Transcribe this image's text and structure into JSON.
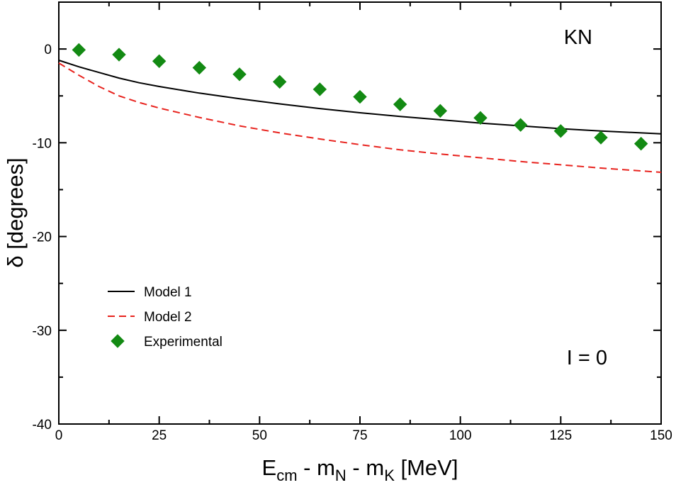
{
  "chart_data": {
    "type": "line",
    "title": "",
    "xlabel": {
      "main": "E",
      "sub1": "cm",
      "mid1": " - m",
      "sub2": "N",
      "mid2": " - m",
      "sub3": "K",
      "tail": " [MeV]"
    },
    "ylabel": "δ [degrees]",
    "xlim": [
      0,
      150
    ],
    "ylim": [
      -40,
      5
    ],
    "xticks": [
      0,
      25,
      50,
      75,
      100,
      125,
      150
    ],
    "yticks": [
      0,
      -10,
      -20,
      -30,
      -40
    ],
    "grid": false,
    "legend_position": "lower-left",
    "annotations": {
      "top_right": "KN",
      "bottom_right": "I = 0"
    },
    "series": [
      {
        "name": "Model 1",
        "style": "solid",
        "color": "#000000",
        "x": [
          0,
          5,
          10,
          15,
          20,
          25,
          35,
          45,
          55,
          65,
          75,
          85,
          95,
          105,
          115,
          125,
          135,
          145,
          150
        ],
        "y": [
          -1.2,
          -1.9,
          -2.5,
          -3.1,
          -3.6,
          -4.0,
          -4.7,
          -5.3,
          -5.85,
          -6.35,
          -6.8,
          -7.2,
          -7.55,
          -7.9,
          -8.2,
          -8.5,
          -8.75,
          -8.95,
          -9.05
        ]
      },
      {
        "name": "Model 2",
        "style": "dashed",
        "color": "#e8231e",
        "x": [
          0,
          5,
          10,
          15,
          20,
          25,
          35,
          45,
          55,
          65,
          75,
          85,
          95,
          105,
          115,
          125,
          135,
          145,
          150
        ],
        "y": [
          -1.5,
          -2.8,
          -4.0,
          -5.0,
          -5.7,
          -6.3,
          -7.3,
          -8.2,
          -8.95,
          -9.6,
          -10.2,
          -10.75,
          -11.2,
          -11.6,
          -12.0,
          -12.35,
          -12.7,
          -13.0,
          -13.15
        ]
      },
      {
        "name": "Experimental",
        "style": "markers",
        "marker": "diamond",
        "color": "#138a13",
        "x": [
          5,
          15,
          25,
          35,
          45,
          55,
          65,
          75,
          85,
          95,
          105,
          115,
          125,
          135,
          145
        ],
        "y": [
          -0.1,
          -0.6,
          -1.3,
          -2.0,
          -2.7,
          -3.5,
          -4.3,
          -5.1,
          -5.9,
          -6.6,
          -7.35,
          -8.1,
          -8.75,
          -9.45,
          -10.1
        ]
      }
    ]
  }
}
